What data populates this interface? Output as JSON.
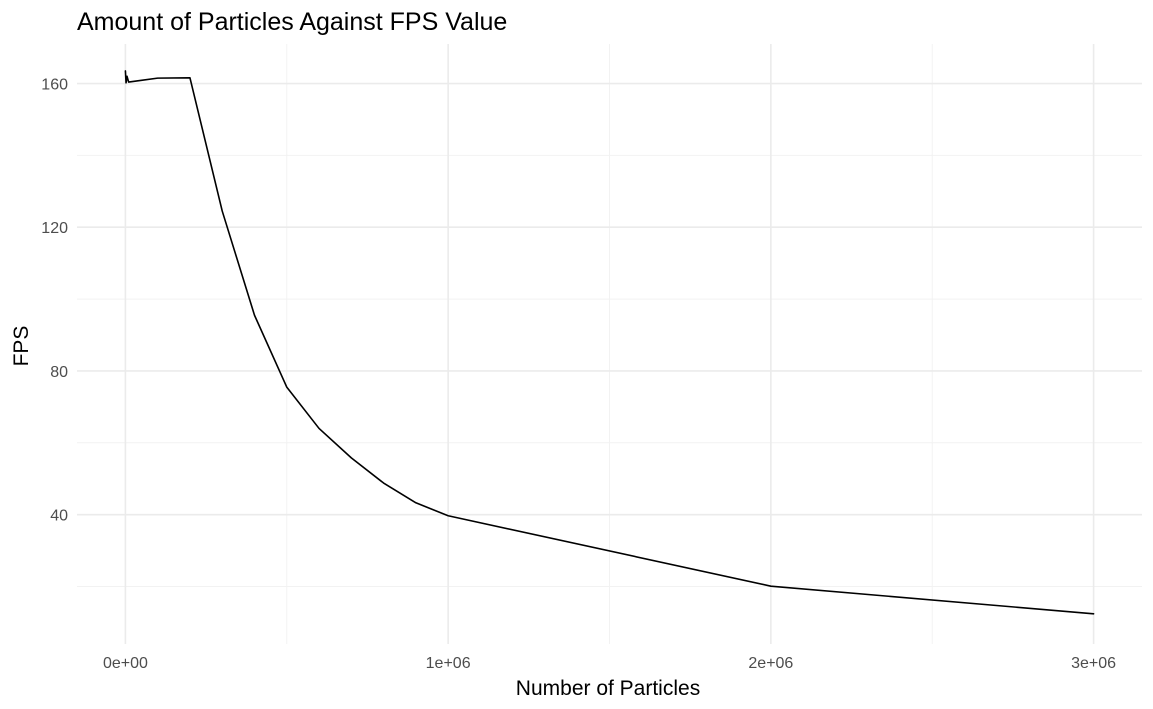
{
  "chart_data": {
    "type": "line",
    "title": "Amount of Particles Against FPS Value",
    "xlabel": "Number of Particles",
    "ylabel": "FPS",
    "xlim": [
      -150000,
      3150000
    ],
    "ylim": [
      4,
      171
    ],
    "x_ticks": [
      {
        "value": 0,
        "label": "0e+00"
      },
      {
        "value": 1000000,
        "label": "1e+06"
      },
      {
        "value": 2000000,
        "label": "2e+06"
      },
      {
        "value": 3000000,
        "label": "3e+06"
      }
    ],
    "x_minor_ticks": [
      500000,
      1500000,
      2500000
    ],
    "y_ticks": [
      {
        "value": 40,
        "label": "40"
      },
      {
        "value": 80,
        "label": "80"
      },
      {
        "value": 120,
        "label": "120"
      },
      {
        "value": 160,
        "label": "160"
      }
    ],
    "y_minor_ticks": [
      20,
      60,
      100,
      140
    ],
    "grid": true,
    "legend": "none",
    "series": [
      {
        "color": "#000000",
        "points": [
          {
            "x": 0,
            "y": 163.5
          },
          {
            "x": 2000,
            "y": 160.2
          },
          {
            "x": 5000,
            "y": 162.0
          },
          {
            "x": 10000,
            "y": 160.4
          },
          {
            "x": 50000,
            "y": 160.9
          },
          {
            "x": 100000,
            "y": 161.5
          },
          {
            "x": 200000,
            "y": 161.6
          },
          {
            "x": 300000,
            "y": 124.5
          },
          {
            "x": 400000,
            "y": 95.5
          },
          {
            "x": 500000,
            "y": 75.5
          },
          {
            "x": 600000,
            "y": 64.0
          },
          {
            "x": 700000,
            "y": 55.8
          },
          {
            "x": 800000,
            "y": 48.8
          },
          {
            "x": 900000,
            "y": 43.3
          },
          {
            "x": 1000000,
            "y": 39.7
          },
          {
            "x": 2000000,
            "y": 20.1
          },
          {
            "x": 3000000,
            "y": 12.4
          }
        ]
      }
    ]
  }
}
